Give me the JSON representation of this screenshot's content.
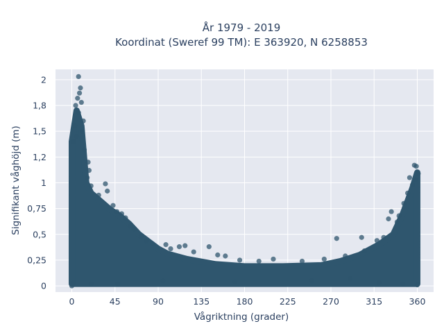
{
  "chart_data": {
    "type": "scatter",
    "title": "År 1979 - 2019",
    "subtitle": "Koordinat (Sweref 99 TM): E 363920, N 6258853",
    "xlabel": "Vågriktning (grader)",
    "ylabel": "Signifikant våghöjd (m)",
    "xlim": [
      -17,
      377
    ],
    "ylim": [
      -0.06,
      2.1
    ],
    "xticks": [
      0,
      45,
      90,
      135,
      180,
      225,
      270,
      315,
      360
    ],
    "xtick_labels": [
      "0",
      "45",
      "90",
      "135",
      "180",
      "225",
      "270",
      "315",
      "360"
    ],
    "yticks": [
      0,
      0.25,
      0.5,
      0.75,
      1,
      1.25,
      1.5,
      1.75,
      2
    ],
    "ytick_labels": [
      "0",
      "0,25",
      "0,5",
      "0,75",
      "1",
      "1,2",
      "1,5",
      "1,8",
      "2"
    ],
    "grid": true,
    "background": "#e5e8f0",
    "grid_color": "#ffffff",
    "marker_color": "#2f566e",
    "envelope": [
      {
        "x": 0,
        "y": 1.4
      },
      {
        "x": 5,
        "y": 1.7
      },
      {
        "x": 10,
        "y": 1.55
      },
      {
        "x": 15,
        "y": 1.0
      },
      {
        "x": 20,
        "y": 0.9
      },
      {
        "x": 30,
        "y": 0.82
      },
      {
        "x": 40,
        "y": 0.74
      },
      {
        "x": 50,
        "y": 0.68
      },
      {
        "x": 60,
        "y": 0.6
      },
      {
        "x": 70,
        "y": 0.5
      },
      {
        "x": 80,
        "y": 0.43
      },
      {
        "x": 90,
        "y": 0.36
      },
      {
        "x": 100,
        "y": 0.31
      },
      {
        "x": 120,
        "y": 0.26
      },
      {
        "x": 150,
        "y": 0.21
      },
      {
        "x": 180,
        "y": 0.19
      },
      {
        "x": 220,
        "y": 0.19
      },
      {
        "x": 260,
        "y": 0.2
      },
      {
        "x": 280,
        "y": 0.24
      },
      {
        "x": 300,
        "y": 0.3
      },
      {
        "x": 320,
        "y": 0.4
      },
      {
        "x": 335,
        "y": 0.5
      },
      {
        "x": 345,
        "y": 0.7
      },
      {
        "x": 355,
        "y": 0.95
      },
      {
        "x": 360,
        "y": 1.1
      }
    ],
    "points": [
      {
        "x": 7,
        "y": 2.03
      },
      {
        "x": 9,
        "y": 1.92
      },
      {
        "x": 8,
        "y": 1.87
      },
      {
        "x": 6,
        "y": 1.82
      },
      {
        "x": 10,
        "y": 1.78
      },
      {
        "x": 4,
        "y": 1.75
      },
      {
        "x": 7,
        "y": 1.68
      },
      {
        "x": 12,
        "y": 1.6
      },
      {
        "x": 3,
        "y": 1.55
      },
      {
        "x": 11,
        "y": 1.5
      },
      {
        "x": 5,
        "y": 1.45
      },
      {
        "x": 2,
        "y": 1.4
      },
      {
        "x": 13,
        "y": 1.32
      },
      {
        "x": 17,
        "y": 1.2
      },
      {
        "x": 18,
        "y": 1.12
      },
      {
        "x": 16,
        "y": 1.05
      },
      {
        "x": 20,
        "y": 0.97
      },
      {
        "x": 35,
        "y": 0.99
      },
      {
        "x": 37,
        "y": 0.92
      },
      {
        "x": 28,
        "y": 0.88
      },
      {
        "x": 43,
        "y": 0.78
      },
      {
        "x": 47,
        "y": 0.72
      },
      {
        "x": 52,
        "y": 0.7
      },
      {
        "x": 56,
        "y": 0.66
      },
      {
        "x": 61,
        "y": 0.58
      },
      {
        "x": 65,
        "y": 0.55
      },
      {
        "x": 72,
        "y": 0.48
      },
      {
        "x": 78,
        "y": 0.44
      },
      {
        "x": 84,
        "y": 0.41
      },
      {
        "x": 98,
        "y": 0.4
      },
      {
        "x": 103,
        "y": 0.36
      },
      {
        "x": 112,
        "y": 0.38
      },
      {
        "x": 118,
        "y": 0.39
      },
      {
        "x": 127,
        "y": 0.33
      },
      {
        "x": 143,
        "y": 0.38
      },
      {
        "x": 152,
        "y": 0.3
      },
      {
        "x": 160,
        "y": 0.29
      },
      {
        "x": 175,
        "y": 0.25
      },
      {
        "x": 195,
        "y": 0.24
      },
      {
        "x": 210,
        "y": 0.26
      },
      {
        "x": 240,
        "y": 0.24
      },
      {
        "x": 263,
        "y": 0.26
      },
      {
        "x": 276,
        "y": 0.46
      },
      {
        "x": 285,
        "y": 0.29
      },
      {
        "x": 302,
        "y": 0.47
      },
      {
        "x": 305,
        "y": 0.34
      },
      {
        "x": 318,
        "y": 0.44
      },
      {
        "x": 325,
        "y": 0.47
      },
      {
        "x": 330,
        "y": 0.65
      },
      {
        "x": 333,
        "y": 0.72
      },
      {
        "x": 339,
        "y": 0.62
      },
      {
        "x": 341,
        "y": 0.68
      },
      {
        "x": 346,
        "y": 0.8
      },
      {
        "x": 350,
        "y": 0.9
      },
      {
        "x": 352,
        "y": 1.05
      },
      {
        "x": 355,
        "y": 0.98
      },
      {
        "x": 357,
        "y": 1.17
      },
      {
        "x": 359,
        "y": 1.16
      },
      {
        "x": 361,
        "y": 1.09
      },
      {
        "x": 358,
        "y": 1.03
      },
      {
        "x": 48,
        "y": 0.02
      },
      {
        "x": 95,
        "y": 0.05
      },
      {
        "x": 170,
        "y": 0.04
      },
      {
        "x": 250,
        "y": 0.05
      },
      {
        "x": 290,
        "y": 0.07
      },
      {
        "x": 320,
        "y": 0.03
      },
      {
        "x": 345,
        "y": 0.02
      },
      {
        "x": 20,
        "y": 0.02
      },
      {
        "x": 0,
        "y": 0.0
      },
      {
        "x": 2,
        "y": 0.03
      },
      {
        "x": 360,
        "y": 0.01
      }
    ]
  }
}
